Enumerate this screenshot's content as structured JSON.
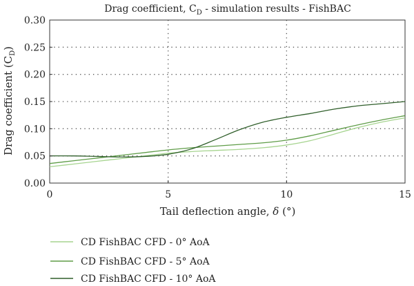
{
  "chart_data": {
    "type": "line",
    "title": "Drag coefficient, C_D - simulation results - FishBAC",
    "title_main": "Drag coefficient, C",
    "title_sub": "D",
    "title_tail": " - simulation results - FishBAC",
    "xlabel": "Tail deflection angle, δ (°)",
    "xlabel_main": "Tail deflection angle, ",
    "xlabel_symbol": "δ",
    "xlabel_tail": " (°)",
    "ylabel": "Drag coefficient (C_D)",
    "ylabel_main": "Drag coefficient (C",
    "ylabel_sub": "D",
    "ylabel_tail": ")",
    "xlim": [
      0,
      15
    ],
    "ylim": [
      0,
      0.3
    ],
    "xticks": [
      0,
      5,
      10,
      15
    ],
    "xtick_labels": [
      "0",
      "5",
      "10",
      "15"
    ],
    "yticks": [
      0,
      0.05,
      0.1,
      0.15,
      0.2,
      0.25,
      0.3
    ],
    "ytick_labels": [
      "0.00",
      "0.05",
      "0.10",
      "0.15",
      "0.20",
      "0.25",
      "0.30"
    ],
    "grid": true,
    "legend_position": "bottom-left",
    "series": [
      {
        "name": "CD FishBAC CFD - 0° AoA",
        "color": "#a6d48f",
        "x": [
          0,
          1,
          2,
          3,
          4,
          5,
          6,
          7,
          8,
          9,
          10,
          11,
          12,
          13,
          14,
          15
        ],
        "y": [
          0.03,
          0.035,
          0.04,
          0.045,
          0.05,
          0.055,
          0.058,
          0.06,
          0.062,
          0.065,
          0.07,
          0.078,
          0.09,
          0.102,
          0.112,
          0.12
        ]
      },
      {
        "name": "CD FishBAC CFD - 5° AoA",
        "color": "#5e9c47",
        "x": [
          0,
          1,
          2,
          3,
          4,
          5,
          6,
          7,
          8,
          9,
          10,
          11,
          12,
          13,
          14,
          15
        ],
        "y": [
          0.036,
          0.041,
          0.046,
          0.051,
          0.056,
          0.061,
          0.065,
          0.068,
          0.071,
          0.074,
          0.079,
          0.087,
          0.097,
          0.107,
          0.116,
          0.124
        ]
      },
      {
        "name": "CD FishBAC CFD - 10° AoA",
        "color": "#2f5e2a",
        "x": [
          0,
          1,
          2,
          3,
          4,
          5,
          6,
          7,
          8,
          9,
          10,
          11,
          12,
          13,
          14,
          15
        ],
        "y": [
          0.05,
          0.05,
          0.049,
          0.048,
          0.049,
          0.053,
          0.063,
          0.08,
          0.098,
          0.112,
          0.121,
          0.128,
          0.136,
          0.142,
          0.146,
          0.15
        ]
      }
    ]
  }
}
